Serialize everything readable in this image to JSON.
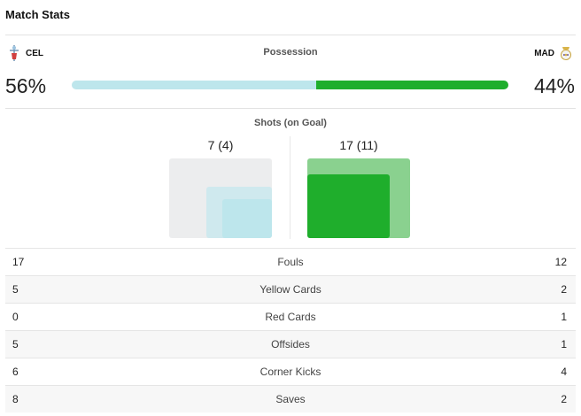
{
  "header": {
    "title": "Match Stats"
  },
  "teams": {
    "home": {
      "abbr": "CEL",
      "crest_icon": "celta-crest-icon"
    },
    "away": {
      "abbr": "MAD",
      "crest_icon": "real-madrid-crest-icon"
    }
  },
  "possession": {
    "label": "Possession",
    "home_pct_text": "56%",
    "away_pct_text": "44%",
    "home_value": 56,
    "away_value": 44,
    "home_color": "#bde6ec",
    "away_color": "#1fae2c"
  },
  "shots": {
    "label": "Shots (on Goal)",
    "home_text": "7 (4)",
    "away_text": "17 (11)",
    "home_total": 7,
    "home_on_goal": 4,
    "away_total": 17,
    "away_on_goal": 11,
    "max_total": 17
  },
  "stats": [
    {
      "label": "Fouls",
      "home": "17",
      "away": "12"
    },
    {
      "label": "Yellow Cards",
      "home": "5",
      "away": "2"
    },
    {
      "label": "Red Cards",
      "home": "0",
      "away": "1"
    },
    {
      "label": "Offsides",
      "home": "5",
      "away": "1"
    },
    {
      "label": "Corner Kicks",
      "home": "6",
      "away": "4"
    },
    {
      "label": "Saves",
      "home": "8",
      "away": "2"
    }
  ]
}
